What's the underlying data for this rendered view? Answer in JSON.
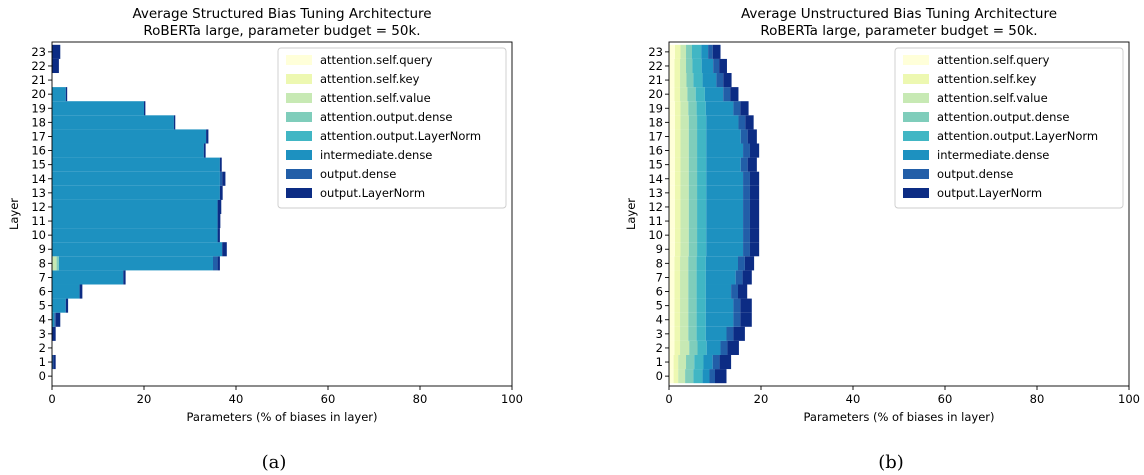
{
  "palette": [
    "#ffffd9",
    "#edf8b1",
    "#c7e9b4",
    "#7fcdbb",
    "#41b6c4",
    "#1d91c0",
    "#225ea8",
    "#0c2c84"
  ],
  "chart_data": [
    {
      "type": "bar",
      "orientation": "horizontal-stacked",
      "title": "Average Structured Bias Tuning Architecture",
      "subtitle": "RoBERTa large, parameter budget = 50k.",
      "xlabel": "Parameters (% of biases in layer)",
      "ylabel": "Layer",
      "xlim": [
        0,
        100
      ],
      "x_ticks": [
        "0",
        "20",
        "40",
        "60",
        "80",
        "100"
      ],
      "categories": [
        "0",
        "1",
        "2",
        "3",
        "4",
        "5",
        "6",
        "7",
        "8",
        "9",
        "10",
        "11",
        "12",
        "13",
        "14",
        "15",
        "16",
        "17",
        "18",
        "19",
        "20",
        "21",
        "22",
        "23"
      ],
      "legend_position": "upper right",
      "caption": "(a)",
      "series": [
        {
          "name": "attention.self.query",
          "values": [
            0,
            0,
            0,
            0,
            0,
            0,
            0,
            0,
            0,
            0,
            0,
            0,
            0,
            0,
            0,
            0,
            0,
            0,
            0,
            0,
            0,
            0,
            0,
            0
          ]
        },
        {
          "name": "attention.self.key",
          "values": [
            0,
            0,
            0,
            0,
            0,
            0,
            0,
            0,
            0,
            0,
            0,
            0,
            0,
            0,
            0,
            0,
            0,
            0,
            0,
            0,
            0,
            0,
            0,
            0
          ]
        },
        {
          "name": "attention.self.value",
          "values": [
            0,
            0,
            0,
            0,
            0,
            0,
            0,
            0,
            1,
            0,
            0,
            0,
            0,
            0,
            0,
            0,
            0,
            0,
            0,
            0,
            0,
            0,
            0,
            0
          ]
        },
        {
          "name": "attention.output.dense",
          "values": [
            0,
            0,
            0,
            0,
            0,
            0,
            0,
            0,
            0.5,
            0,
            0,
            0,
            0,
            0,
            0,
            0,
            0,
            0,
            0,
            0,
            0,
            0,
            0,
            0
          ]
        },
        {
          "name": "attention.output.LayerNorm",
          "values": [
            0,
            0,
            0,
            0,
            0,
            0,
            0,
            0,
            0,
            0,
            0,
            0,
            0,
            0,
            0,
            0,
            0,
            0,
            0,
            0,
            0,
            0,
            0,
            0
          ]
        },
        {
          "name": "intermediate.dense",
          "values": [
            0,
            0,
            0,
            0,
            0.5,
            3,
            6,
            15.5,
            33.5,
            37,
            36,
            36,
            36,
            36.5,
            36.5,
            36.5,
            33,
            33.5,
            26.5,
            20,
            3,
            0,
            0,
            0
          ]
        },
        {
          "name": "output.dense",
          "values": [
            0,
            0.3,
            0,
            0,
            0.3,
            0,
            0,
            0,
            1,
            0,
            0,
            0,
            0,
            0,
            0.5,
            0,
            0,
            0,
            0,
            0,
            0,
            0,
            0,
            0
          ]
        },
        {
          "name": "output.LayerNorm",
          "values": [
            0,
            0.5,
            0,
            0.8,
            1.0,
            0.5,
            0.6,
            0.5,
            0.5,
            1.0,
            0.5,
            0.6,
            0.8,
            0.6,
            0.7,
            0.4,
            0.4,
            0.5,
            0.3,
            0.3,
            0.3,
            0,
            1.5,
            1.8
          ]
        }
      ]
    },
    {
      "type": "bar",
      "orientation": "horizontal-stacked",
      "title": "Average Unstructured Bias Tuning Architecture",
      "subtitle": "RoBERTa large, parameter budget = 50k.",
      "xlabel": "Parameters (% of biases in layer)",
      "ylabel": "Layer",
      "xlim": [
        0,
        100
      ],
      "x_ticks": [
        "0",
        "20",
        "40",
        "60",
        "80",
        "100"
      ],
      "categories": [
        "0",
        "1",
        "2",
        "3",
        "4",
        "5",
        "6",
        "7",
        "8",
        "9",
        "10",
        "11",
        "12",
        "13",
        "14",
        "15",
        "16",
        "17",
        "18",
        "19",
        "20",
        "21",
        "22",
        "23"
      ],
      "legend_position": "upper right",
      "caption": "(b)",
      "series": [
        {
          "name": "attention.self.query",
          "values": [
            1.0,
            1.0,
            1.2,
            1.2,
            1.2,
            1.2,
            1.2,
            1.2,
            1.2,
            1.3,
            1.3,
            1.3,
            1.3,
            1.3,
            1.3,
            1.3,
            1.3,
            1.3,
            1.3,
            1.3,
            1.2,
            1.2,
            1.2,
            1.3
          ]
        },
        {
          "name": "attention.self.key",
          "values": [
            1.0,
            1.0,
            1.2,
            1.2,
            1.2,
            1.2,
            1.2,
            1.2,
            1.2,
            1.2,
            1.2,
            1.2,
            1.2,
            1.2,
            1.2,
            1.2,
            1.2,
            1.2,
            1.2,
            1.2,
            1.2,
            1.2,
            1.2,
            1.2
          ]
        },
        {
          "name": "attention.self.value",
          "values": [
            1.5,
            1.7,
            2.0,
            1.8,
            1.8,
            1.8,
            1.8,
            1.8,
            1.8,
            1.8,
            1.8,
            1.8,
            1.8,
            1.8,
            1.8,
            1.8,
            1.8,
            1.8,
            1.8,
            1.7,
            1.6,
            1.4,
            1.3,
            1.2
          ]
        },
        {
          "name": "attention.output.dense",
          "values": [
            1.8,
            1.8,
            1.8,
            1.8,
            1.8,
            1.8,
            1.8,
            1.8,
            1.8,
            1.8,
            1.8,
            1.8,
            1.8,
            1.8,
            1.8,
            1.8,
            1.8,
            1.8,
            1.8,
            1.8,
            1.8,
            1.5,
            1.4,
            1.3
          ]
        },
        {
          "name": "attention.output.LayerNorm",
          "values": [
            2.0,
            2.0,
            2.0,
            2.0,
            2.0,
            2.0,
            2.0,
            2.0,
            2.0,
            2.0,
            2.0,
            2.0,
            2.0,
            2.0,
            2.0,
            2.0,
            2.0,
            2.0,
            2.0,
            2.0,
            2.0,
            2.0,
            2.0,
            2.0
          ]
        },
        {
          "name": "intermediate.dense",
          "values": [
            1.5,
            2.0,
            3.0,
            4.5,
            6.0,
            6.0,
            5.5,
            6.5,
            7.0,
            8.0,
            8.0,
            8.0,
            8.0,
            8.0,
            8.0,
            7.5,
            8.0,
            7.5,
            7.0,
            6.0,
            4.0,
            3.0,
            2.5,
            1.5
          ]
        },
        {
          "name": "output.dense",
          "values": [
            1.2,
            1.5,
            1.5,
            1.5,
            1.5,
            1.5,
            1.5,
            1.5,
            1.5,
            1.5,
            1.5,
            1.5,
            1.5,
            1.5,
            1.5,
            1.5,
            1.5,
            1.5,
            1.5,
            1.5,
            1.5,
            1.5,
            1.3,
            1.0
          ]
        },
        {
          "name": "output.LayerNorm",
          "values": [
            2.5,
            2.5,
            2.5,
            2.5,
            2.5,
            2.5,
            2.0,
            2.0,
            2.0,
            2.0,
            2.0,
            2.0,
            2.0,
            2.0,
            2.0,
            2.0,
            2.0,
            2.0,
            1.8,
            1.8,
            1.8,
            1.8,
            1.7,
            1.7
          ]
        }
      ]
    }
  ]
}
